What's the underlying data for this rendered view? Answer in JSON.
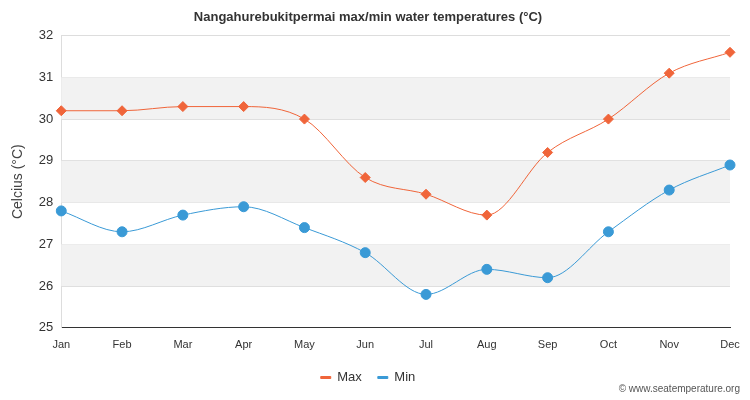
{
  "chart_data": {
    "type": "line",
    "title": "Nangahurebukitpermai max/min water temperatures (°C)",
    "y_label": "Celcius (°C)",
    "annotations": [
      "© www.seatemperature.org"
    ],
    "categories": [
      "Jan",
      "Feb",
      "Mar",
      "Apr",
      "May",
      "Jun",
      "Jul",
      "Aug",
      "Sep",
      "Oct",
      "Nov",
      "Dec"
    ],
    "series": [
      {
        "name": "Max",
        "color": "#f0653a",
        "marker": "diamond",
        "line_style": "solid",
        "values": [
          30.2,
          30.2,
          30.3,
          30.3,
          30.0,
          28.6,
          28.2,
          27.7,
          29.2,
          30.0,
          31.1,
          31.6
        ]
      },
      {
        "name": "Min",
        "color": "#3a9ad6",
        "marker": "circle",
        "line_style": "solid",
        "values": [
          27.8,
          27.3,
          27.7,
          27.9,
          27.4,
          26.8,
          25.8,
          26.4,
          26.2,
          27.3,
          28.3,
          28.9
        ]
      }
    ],
    "ylim": [
      25,
      32
    ],
    "yticks": [
      25,
      26,
      27,
      28,
      29,
      30,
      31,
      32
    ],
    "grid": true,
    "legend": "bottom"
  }
}
